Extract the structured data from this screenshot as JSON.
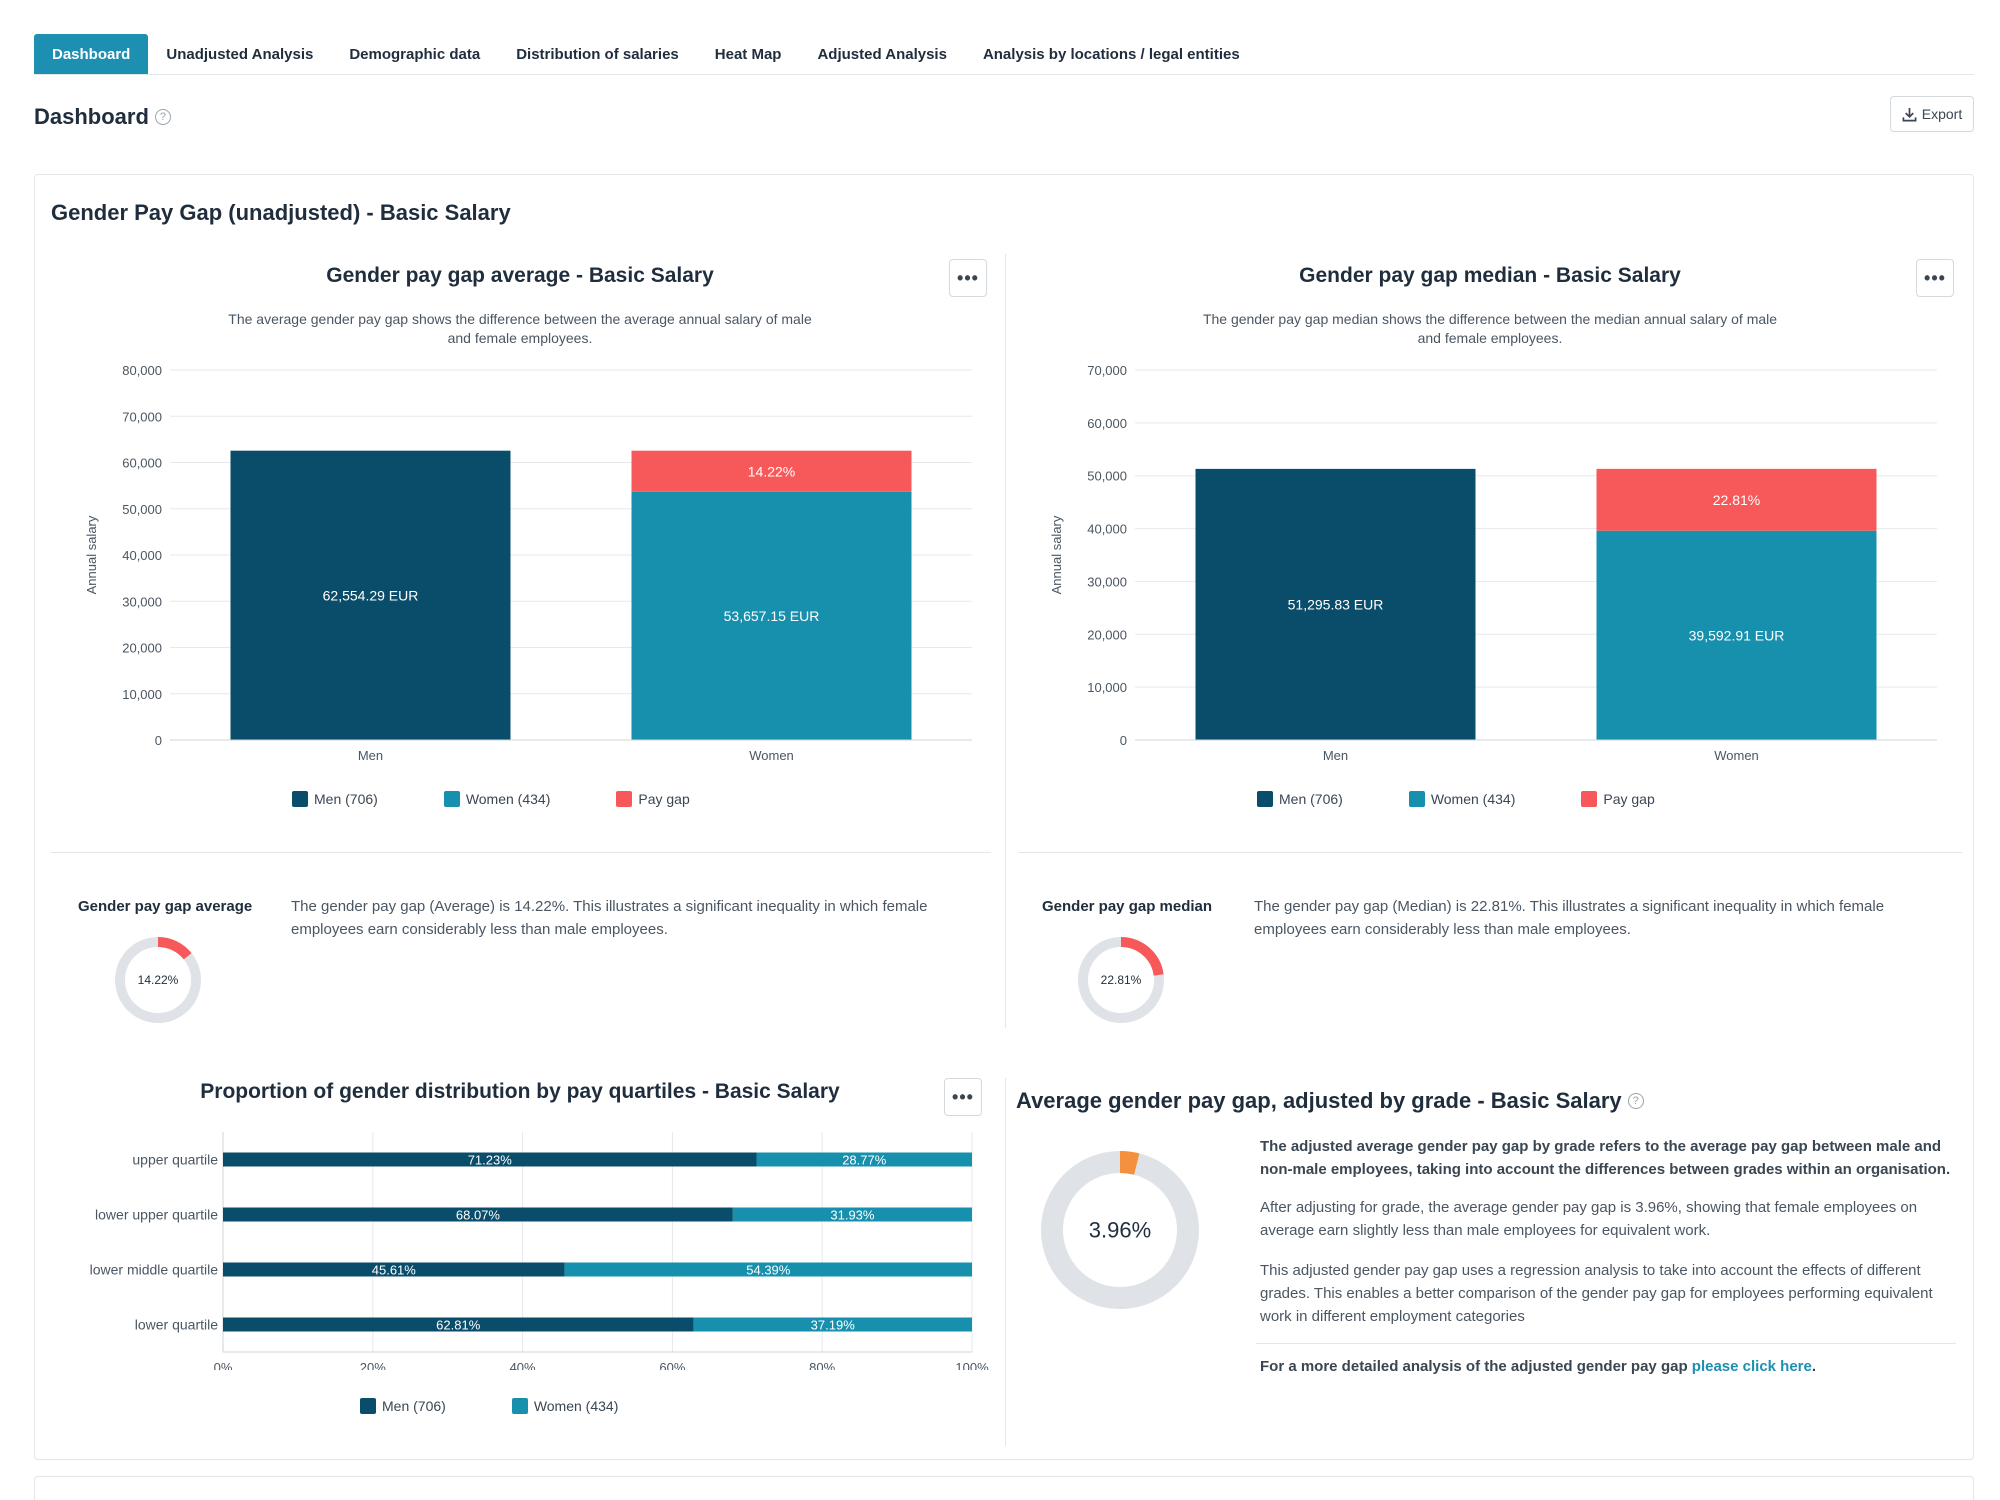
{
  "tabs": [
    {
      "label": "Dashboard",
      "active": true
    },
    {
      "label": "Unadjusted Analysis"
    },
    {
      "label": "Demographic data"
    },
    {
      "label": "Distribution of salaries"
    },
    {
      "label": "Heat Map"
    },
    {
      "label": "Adjusted Analysis"
    },
    {
      "label": "Analysis by locations / legal entities"
    }
  ],
  "page": {
    "title": "Dashboard",
    "help": "?",
    "export_label": "Export"
  },
  "section": {
    "title": "Gender Pay Gap (unadjusted) - Basic Salary"
  },
  "colors": {
    "men": "#0a4d6b",
    "women": "#1790ad",
    "gap": "#f7595a",
    "accent": "#1d8fb0",
    "orange": "#f5913e",
    "ring": "#dfe2e6"
  },
  "legend": {
    "men": "Men (706)",
    "women": "Women (434)",
    "gap": "Pay gap"
  },
  "avg_chart": {
    "title": "Gender pay gap average - Basic Salary",
    "desc1": "The average gender pay gap shows the difference between the average annual salary of male",
    "desc2": "and female employees."
  },
  "median_chart": {
    "title": "Gender pay gap median - Basic Salary",
    "desc1": "The gender pay gap median shows the difference between the median annual salary of male",
    "desc2": "and female employees."
  },
  "avg_stat": {
    "label": "Gender pay gap average",
    "value": "14.22%",
    "text": "The gender pay gap (Average) is 14.22%. This illustrates a significant inequality in which female employees earn considerably less than male employees."
  },
  "median_stat": {
    "label": "Gender pay gap median",
    "value": "22.81%",
    "text": "The gender pay gap (Median) is 22.81%. This illustrates a significant inequality in which female employees earn considerably less than male employees."
  },
  "quartile_chart": {
    "title": "Proportion of gender distribution by pay quartiles - Basic Salary"
  },
  "adjusted": {
    "title": "Average gender pay gap, adjusted by grade - Basic Salary",
    "value": "3.96%",
    "p1": "The adjusted average gender pay gap by grade refers to the average pay gap between male and non-male employees, taking into account the differences between grades within an organisation.",
    "p2": "After adjusting for grade, the average gender pay gap is 3.96%, showing that female employees on average earn slightly less than male employees for equivalent work.",
    "p3": "This adjusted gender pay gap uses a regression analysis to take into account the effects of different grades. This enables a better comparison of the gender pay gap for employees performing equivalent work in different employment categories",
    "p4": "For a more detailed analysis of the adjusted gender pay gap ",
    "link": "please click here",
    "p4_end": "."
  },
  "chart_data": [
    {
      "type": "bar",
      "title": "Gender pay gap average - Basic Salary",
      "categories": [
        "Men",
        "Women"
      ],
      "ylabel": "Annual salary",
      "ylim": [
        0,
        80000
      ],
      "yticks": [
        0,
        10000,
        20000,
        30000,
        40000,
        50000,
        60000,
        70000,
        80000
      ],
      "ytick_labels": [
        "0",
        "10,000",
        "20,000",
        "30,000",
        "40,000",
        "50,000",
        "60,000",
        "70,000",
        "80,000"
      ],
      "values": [
        62554.29,
        53657.15
      ],
      "gap": 8897.14,
      "value_labels": [
        "62,554.29 EUR",
        "53,657.15 EUR"
      ],
      "gap_label": "14.22%",
      "grid": true,
      "legend": "bottom"
    },
    {
      "type": "bar",
      "title": "Gender pay gap median - Basic Salary",
      "categories": [
        "Men",
        "Women"
      ],
      "ylabel": "Annual salary",
      "ylim": [
        0,
        70000
      ],
      "yticks": [
        0,
        10000,
        20000,
        30000,
        40000,
        50000,
        60000,
        70000
      ],
      "ytick_labels": [
        "0",
        "10,000",
        "20,000",
        "30,000",
        "40,000",
        "50,000",
        "60,000",
        "70,000"
      ],
      "values": [
        51295.83,
        39592.91
      ],
      "gap": 11702.92,
      "value_labels": [
        "51,295.83 EUR",
        "39,592.91 EUR"
      ],
      "gap_label": "22.81%",
      "grid": true,
      "legend": "bottom"
    },
    {
      "type": "bar",
      "orientation": "horizontal-stacked",
      "title": "Proportion of gender distribution by pay quartiles - Basic Salary",
      "categories": [
        "upper quartile",
        "lower upper quartile",
        "lower middle quartile",
        "lower quartile"
      ],
      "series": [
        {
          "name": "Men (706)",
          "values": [
            71.23,
            68.07,
            45.61,
            62.81
          ],
          "labels": [
            "71.23%",
            "68.07%",
            "45.61%",
            "62.81%"
          ]
        },
        {
          "name": "Women (434)",
          "values": [
            28.77,
            31.93,
            54.39,
            37.19
          ],
          "labels": [
            "28.77%",
            "31.93%",
            "54.39%",
            "37.19%"
          ]
        }
      ],
      "xlim": [
        0,
        100
      ],
      "xticks": [
        0,
        20,
        40,
        60,
        80,
        100
      ],
      "xtick_labels": [
        "0%",
        "20%",
        "40%",
        "60%",
        "80%",
        "100%"
      ],
      "grid": true,
      "legend": "bottom"
    },
    {
      "type": "pie",
      "title": "Gender pay gap average",
      "values": [
        14.22
      ],
      "label": "14.22%"
    },
    {
      "type": "pie",
      "title": "Gender pay gap median",
      "values": [
        22.81
      ],
      "label": "22.81%"
    },
    {
      "type": "pie",
      "title": "Average gender pay gap, adjusted by grade - Basic Salary",
      "values": [
        3.96
      ],
      "label": "3.96%"
    }
  ]
}
